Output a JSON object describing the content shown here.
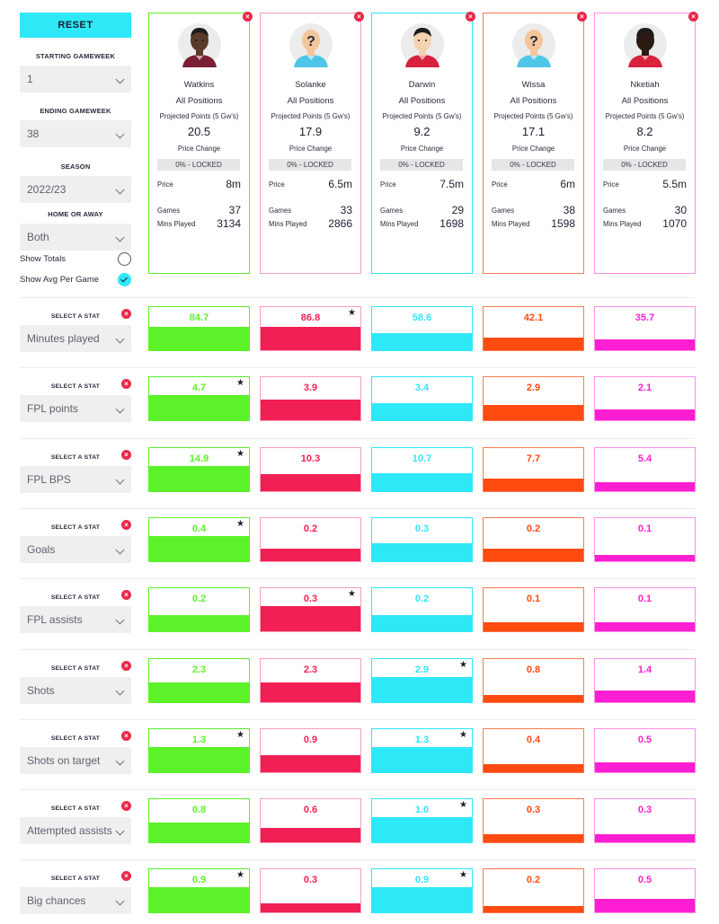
{
  "controls": {
    "reset_label": "RESET",
    "starting_gameweek_label": "STARTING GAMEWEEK",
    "starting_gameweek_value": "1",
    "ending_gameweek_label": "ENDING GAMEWEEK",
    "ending_gameweek_value": "38",
    "season_label": "SEASON",
    "season_value": "2022/23",
    "home_away_label": "HOME OR AWAY",
    "home_away_value": "Both",
    "show_totals_label": "Show Totals",
    "show_totals_checked": false,
    "show_avg_label": "Show Avg Per Game",
    "show_avg_checked": true
  },
  "card_labels": {
    "proj_label": "Projected Points (5 Gw's)",
    "price_change_label": "Price Change",
    "price_label": "Price",
    "games_label": "Games",
    "mins_label": "Mins Played",
    "remove_icon": "×"
  },
  "players": [
    {
      "name": "Watkins",
      "position": "All Positions",
      "projected": "20.5",
      "price_change": "0% - LOCKED",
      "price": "8m",
      "games": "37",
      "mins": "3134",
      "color": "#5cf22a",
      "border": "#5cf22a",
      "avatar": "player-photo-dark",
      "skin": "#5a3a2a",
      "shirt": "#7a1f35"
    },
    {
      "name": "Solanke",
      "position": "All Positions",
      "projected": "17.9",
      "price_change": "0% - LOCKED",
      "price": "6.5m",
      "games": "33",
      "mins": "2866",
      "color": "#f21f55",
      "border": "#f7a0b5",
      "avatar": "unknown-player",
      "skin": "#f2c69a",
      "shirt": "#4fc6e8"
    },
    {
      "name": "Darwin",
      "position": "All Positions",
      "projected": "9.2",
      "price_change": "0% - LOCKED",
      "price": "7.5m",
      "games": "29",
      "mins": "1698",
      "color": "#2ee8f8",
      "border": "#2ee8f8",
      "avatar": "player-photo-light",
      "skin": "#f2d2b0",
      "shirt": "#d8213a"
    },
    {
      "name": "Wissa",
      "position": "All Positions",
      "projected": "17.1",
      "price_change": "0% - LOCKED",
      "price": "6m",
      "games": "38",
      "mins": "1598",
      "color": "#ff4a10",
      "border": "#ff7a50",
      "avatar": "unknown-player",
      "skin": "#f2c69a",
      "shirt": "#4fc6e8"
    },
    {
      "name": "Nketiah",
      "position": "All Positions",
      "projected": "8.2",
      "price_change": "0% - LOCKED",
      "price": "5.5m",
      "games": "30",
      "mins": "1070",
      "color": "#ff1ed2",
      "border": "#ff8ee6",
      "avatar": "player-photo-dark",
      "skin": "#2a1a12",
      "shirt": "#d8213a"
    }
  ],
  "stat_select_label": "SELECT A STAT",
  "star_icon": "★",
  "stats": [
    {
      "name": "Minutes played",
      "values": [
        "84.7",
        "86.8",
        "58.6",
        "42.1",
        "35.7"
      ],
      "fills": [
        0.55,
        0.55,
        0.4,
        0.29,
        0.24
      ],
      "star": 1
    },
    {
      "name": "FPL points",
      "values": [
        "4.7",
        "3.9",
        "3.4",
        "2.9",
        "2.1"
      ],
      "fills": [
        0.58,
        0.48,
        0.4,
        0.36,
        0.26
      ],
      "star": 0
    },
    {
      "name": "FPL BPS",
      "values": [
        "14.9",
        "10.3",
        "10.7",
        "7.7",
        "5.4"
      ],
      "fills": [
        0.58,
        0.4,
        0.42,
        0.3,
        0.2
      ],
      "star": 0
    },
    {
      "name": "Goals",
      "values": [
        "0.4",
        "0.2",
        "0.3",
        "0.2",
        "0.1"
      ],
      "fills": [
        0.58,
        0.3,
        0.42,
        0.3,
        0.14
      ],
      "star": 0
    },
    {
      "name": "FPL assists",
      "values": [
        "0.2",
        "0.3",
        "0.2",
        "0.1",
        "0.1"
      ],
      "fills": [
        0.38,
        0.58,
        0.38,
        0.2,
        0.2
      ],
      "star": 1
    },
    {
      "name": "Shots",
      "values": [
        "2.3",
        "2.3",
        "2.9",
        "0.8",
        "1.4"
      ],
      "fills": [
        0.46,
        0.46,
        0.58,
        0.16,
        0.28
      ],
      "star": 2
    },
    {
      "name": "Shots on target",
      "values": [
        "1.3",
        "0.9",
        "1.3",
        "0.4",
        "0.5"
      ],
      "fills": [
        0.58,
        0.4,
        0.58,
        0.18,
        0.22
      ],
      "star": [
        0,
        2
      ]
    },
    {
      "name": "Attempted assists",
      "values": [
        "0.8",
        "0.6",
        "1.0",
        "0.3",
        "0.3"
      ],
      "fills": [
        0.46,
        0.34,
        0.58,
        0.18,
        0.18
      ],
      "star": 2
    },
    {
      "name": "Big chances",
      "values": [
        "0.9",
        "0.3",
        "0.9",
        "0.2",
        "0.5"
      ],
      "fills": [
        0.58,
        0.2,
        0.58,
        0.14,
        0.32
      ],
      "star": [
        0,
        2
      ]
    }
  ]
}
